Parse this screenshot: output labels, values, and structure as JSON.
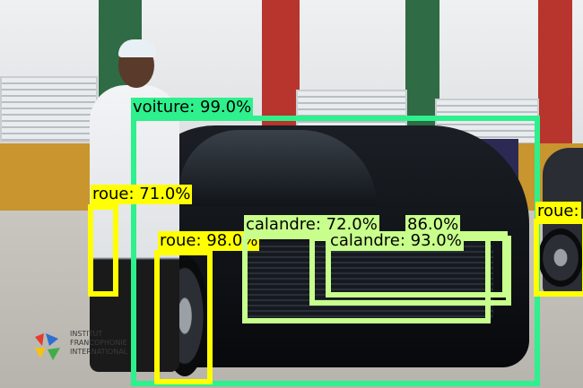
{
  "colors": {
    "voiture": "#2ef08c",
    "roue": "#ffff00",
    "calandre": "#c8ff8c"
  },
  "icons": {
    "logo": "institut-francophonie-logo-icon"
  },
  "logo_text": "INSTITUT FRANCOPHONIE INTERNATIONAL",
  "detections": [
    {
      "name": "voiture",
      "label": "voiture: 99.0%"
    },
    {
      "name": "roue-left",
      "label": "roue: 71.0%"
    },
    {
      "name": "roue-front",
      "label": "roue: 98.0%"
    },
    {
      "name": "roue-right",
      "label": "roue:"
    },
    {
      "name": "calandre-outer",
      "label": "calandre: 72.0%"
    },
    {
      "name": "calandre-mid",
      "label": "86.0%"
    },
    {
      "name": "calandre-inner",
      "label": "calandre: 93.0%"
    }
  ]
}
